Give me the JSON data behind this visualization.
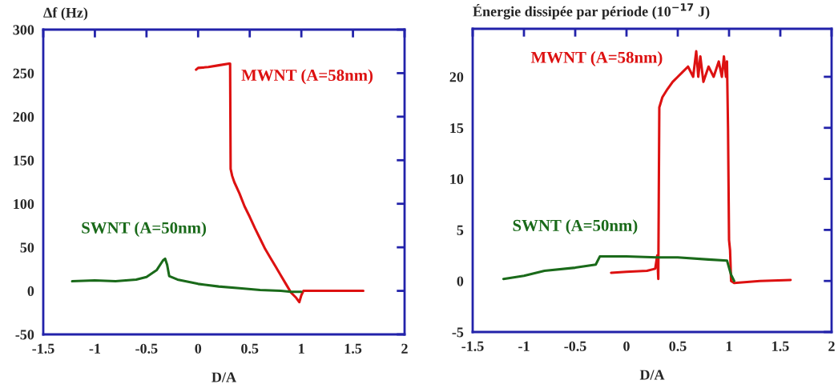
{
  "chart_data": [
    {
      "type": "line",
      "ylabel": "Δf (Hz)",
      "xlabel": "D/A",
      "xlim": [
        -1.5,
        2
      ],
      "xticks": [
        -1.5,
        -1,
        -0.5,
        0,
        0.5,
        1,
        1.5,
        2
      ],
      "ylim": [
        -50,
        300
      ],
      "yticks": [
        -50,
        0,
        50,
        100,
        150,
        200,
        250,
        300
      ],
      "grid": false,
      "legend": false,
      "series": [
        {
          "name": "MWNT (A=58nm)",
          "color": "#dd1111",
          "x": [
            -0.02,
            0.0,
            0.1,
            0.2,
            0.3,
            0.31,
            0.315,
            0.33,
            0.35,
            0.4,
            0.45,
            0.5,
            0.55,
            0.6,
            0.65,
            0.7,
            0.75,
            0.8,
            0.85,
            0.9,
            0.95,
            0.98,
            1.0,
            1.02,
            1.2,
            1.6
          ],
          "values": [
            254,
            256,
            257,
            259,
            261,
            261,
            140,
            132,
            125,
            112,
            97,
            85,
            72,
            60,
            48,
            38,
            28,
            18,
            8,
            -2,
            -8,
            -13,
            -5,
            0,
            0,
            0
          ]
        },
        {
          "name": "SWNT (A=50nm)",
          "color": "#1a6a1a",
          "x": [
            -1.22,
            -1.0,
            -0.8,
            -0.6,
            -0.5,
            -0.4,
            -0.34,
            -0.32,
            -0.3,
            -0.28,
            -0.2,
            0.0,
            0.2,
            0.4,
            0.6,
            0.8,
            0.9,
            1.0
          ],
          "values": [
            11,
            12,
            11,
            13,
            16,
            24,
            35,
            37,
            30,
            17,
            13,
            8,
            5,
            3,
            1,
            0,
            -1,
            -1
          ]
        }
      ]
    },
    {
      "type": "line",
      "ylabel": "Énergie dissipée par période (10$^{−17}$ J)",
      "xlabel": "D/A",
      "xlim": [
        -1.5,
        2
      ],
      "xticks": [
        -1.5,
        -1,
        -0.5,
        0,
        0.5,
        1,
        1.5,
        2
      ],
      "ylim": [
        -5,
        24.7
      ],
      "yticks": [
        -5,
        0,
        5,
        10,
        15,
        20
      ],
      "grid": false,
      "legend": false,
      "series": [
        {
          "name": "MWNT (A=58nm)",
          "color": "#dd1111",
          "x": [
            -0.15,
            0.0,
            0.2,
            0.28,
            0.3,
            0.31,
            0.32,
            0.35,
            0.4,
            0.45,
            0.5,
            0.55,
            0.6,
            0.65,
            0.68,
            0.7,
            0.72,
            0.75,
            0.8,
            0.85,
            0.9,
            0.93,
            0.95,
            0.97,
            0.98,
            0.99,
            1.0,
            1.01,
            1.02,
            1.05,
            1.3,
            1.6
          ],
          "values": [
            0.8,
            0.9,
            1.0,
            1.2,
            2.5,
            0.2,
            17,
            18,
            18.8,
            19.5,
            20,
            20.5,
            21,
            20,
            22.5,
            20,
            22,
            19.5,
            21,
            20,
            21.5,
            20,
            22,
            20,
            21.5,
            15,
            4,
            3,
            0,
            -0.2,
            0,
            0.1
          ]
        },
        {
          "name": "SWNT (A=50nm)",
          "color": "#1a6a1a",
          "x": [
            -1.2,
            -1.0,
            -0.8,
            -0.5,
            -0.3,
            -0.26,
            -0.2,
            0.0,
            0.3,
            0.5,
            0.8,
            0.98,
            1.02,
            1.05
          ],
          "values": [
            0.2,
            0.5,
            1.0,
            1.3,
            1.6,
            2.4,
            2.4,
            2.4,
            2.3,
            2.3,
            2.1,
            2.0,
            0.6,
            0.0
          ]
        }
      ]
    }
  ]
}
